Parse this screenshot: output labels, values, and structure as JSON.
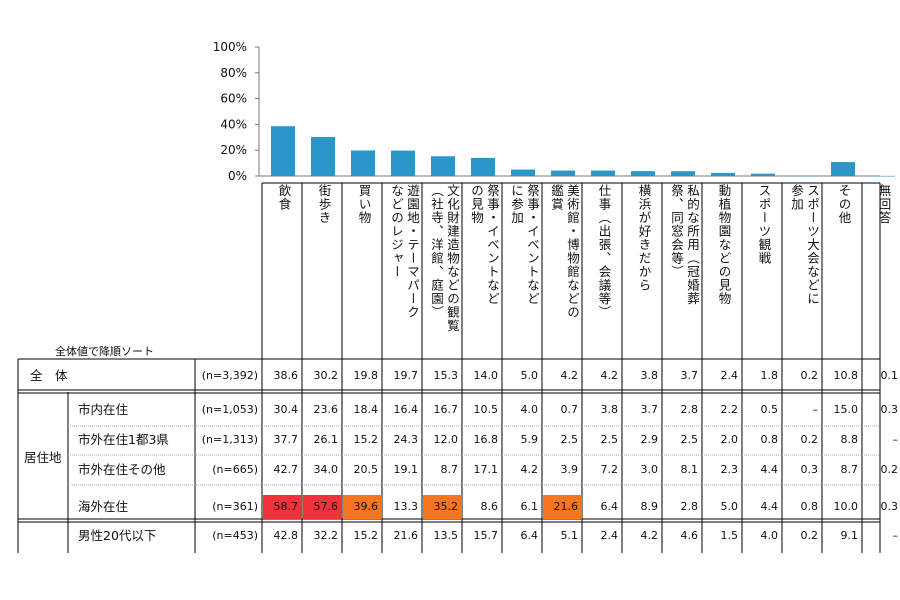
{
  "chart_data": {
    "type": "bar",
    "title": "",
    "xlabel": "",
    "ylabel": "",
    "ylim": [
      0,
      100
    ],
    "yticks": [
      "0%",
      "20%",
      "40%",
      "60%",
      "80%",
      "100%"
    ],
    "grid": false,
    "bar_color": "#2a97c9",
    "categories": [
      "飲食",
      "街歩き",
      "買い物",
      "遊園地・テーマパークなどのレジャー",
      "文化財建造物などの観覧（社寺、洋館、庭園）",
      "祭事・イベントなどの見物",
      "祭事・イベントなどに参加",
      "美術館・博物館などの鑑賞",
      "仕事（出張、会議等）",
      "横浜が好きだから",
      "私的な所用（冠婚葬祭、同窓会等）",
      "動植物園などの見物",
      "スポーツ観戦",
      "スポーツ大会などに参加",
      "その他",
      "無回答"
    ],
    "header_lines": [
      [
        "飲食"
      ],
      [
        "街歩き"
      ],
      [
        "買い物"
      ],
      [
        "遊園地・テーマパーク",
        "などのレジャー"
      ],
      [
        "文化財建造物などの観覧",
        "（社寺、洋館、庭園）"
      ],
      [
        "祭事・イベントなど",
        "の見物"
      ],
      [
        "祭事・イベントなど",
        "に参加"
      ],
      [
        "美術館・博物館などの",
        "鑑賞"
      ],
      [
        "仕事（出張、会議等）"
      ],
      [
        "横浜が好きだから"
      ],
      [
        "私的な所用（冠婚葬",
        "祭、同窓会等）"
      ],
      [
        "動植物園などの見物"
      ],
      [
        "スポーツ観戦"
      ],
      [
        "スポーツ大会などに",
        "参加"
      ],
      [
        "その他"
      ],
      [
        "無回答"
      ]
    ],
    "values": [
      38.6,
      30.2,
      19.8,
      19.7,
      15.3,
      14.0,
      5.0,
      4.2,
      4.2,
      3.8,
      3.7,
      2.4,
      1.8,
      0.2,
      10.8,
      0.1
    ],
    "table": {
      "sort_note": "全体値で降順ソート",
      "highlight_colors": {
        "top": "#f0323c",
        "high": "#f5761e",
        "mid": "#fac882"
      },
      "rows": [
        {
          "group": "全　体",
          "label": "",
          "n": "(n=3,392)",
          "values": [
            "38.6",
            "30.2",
            "19.8",
            "19.7",
            "15.3",
            "14.0",
            "5.0",
            "4.2",
            "4.2",
            "3.8",
            "3.7",
            "2.4",
            "1.8",
            "0.2",
            "10.8",
            "0.1"
          ],
          "highlight": {}
        },
        {
          "group": "居住地",
          "label": "市内在住",
          "n": "(n=1,053)",
          "values": [
            "30.4",
            "23.6",
            "18.4",
            "16.4",
            "16.7",
            "10.5",
            "4.0",
            "0.7",
            "3.8",
            "3.7",
            "2.8",
            "2.2",
            "0.5",
            "–",
            "15.0",
            "0.3"
          ],
          "highlight": {}
        },
        {
          "group": "居住地",
          "label": "市外在住1都3県",
          "n": "(n=1,313)",
          "values": [
            "37.7",
            "26.1",
            "15.2",
            "24.3",
            "12.0",
            "16.8",
            "5.9",
            "2.5",
            "2.5",
            "2.9",
            "2.5",
            "2.0",
            "0.8",
            "0.2",
            "8.8",
            "–"
          ],
          "highlight": {}
        },
        {
          "group": "居住地",
          "label": "市外在住その他",
          "n": "(n=665)",
          "values": [
            "42.7",
            "34.0",
            "20.5",
            "19.1",
            "8.7",
            "17.1",
            "4.2",
            "3.9",
            "7.2",
            "3.0",
            "8.1",
            "2.3",
            "4.4",
            "0.3",
            "8.7",
            "0.2"
          ],
          "highlight": {}
        },
        {
          "group": "居住地",
          "label": "海外在住",
          "n": "(n=361)",
          "values": [
            "58.7",
            "57.6",
            "39.6",
            "13.3",
            "35.2",
            "8.6",
            "6.1",
            "21.6",
            "6.4",
            "8.9",
            "2.8",
            "5.0",
            "4.4",
            "0.8",
            "10.0",
            "0.3"
          ],
          "highlight": {
            "0": "top",
            "1": "top",
            "2": "high",
            "4": "high",
            "7": "high"
          }
        },
        {
          "group": "",
          "label": "男性20代以下",
          "n": "(n=453)",
          "values": [
            "42.8",
            "32.2",
            "15.2",
            "21.6",
            "13.5",
            "15.7",
            "6.4",
            "5.1",
            "2.4",
            "4.2",
            "4.6",
            "1.5",
            "4.0",
            "0.2",
            "9.1",
            "–"
          ],
          "highlight": {}
        }
      ]
    }
  }
}
